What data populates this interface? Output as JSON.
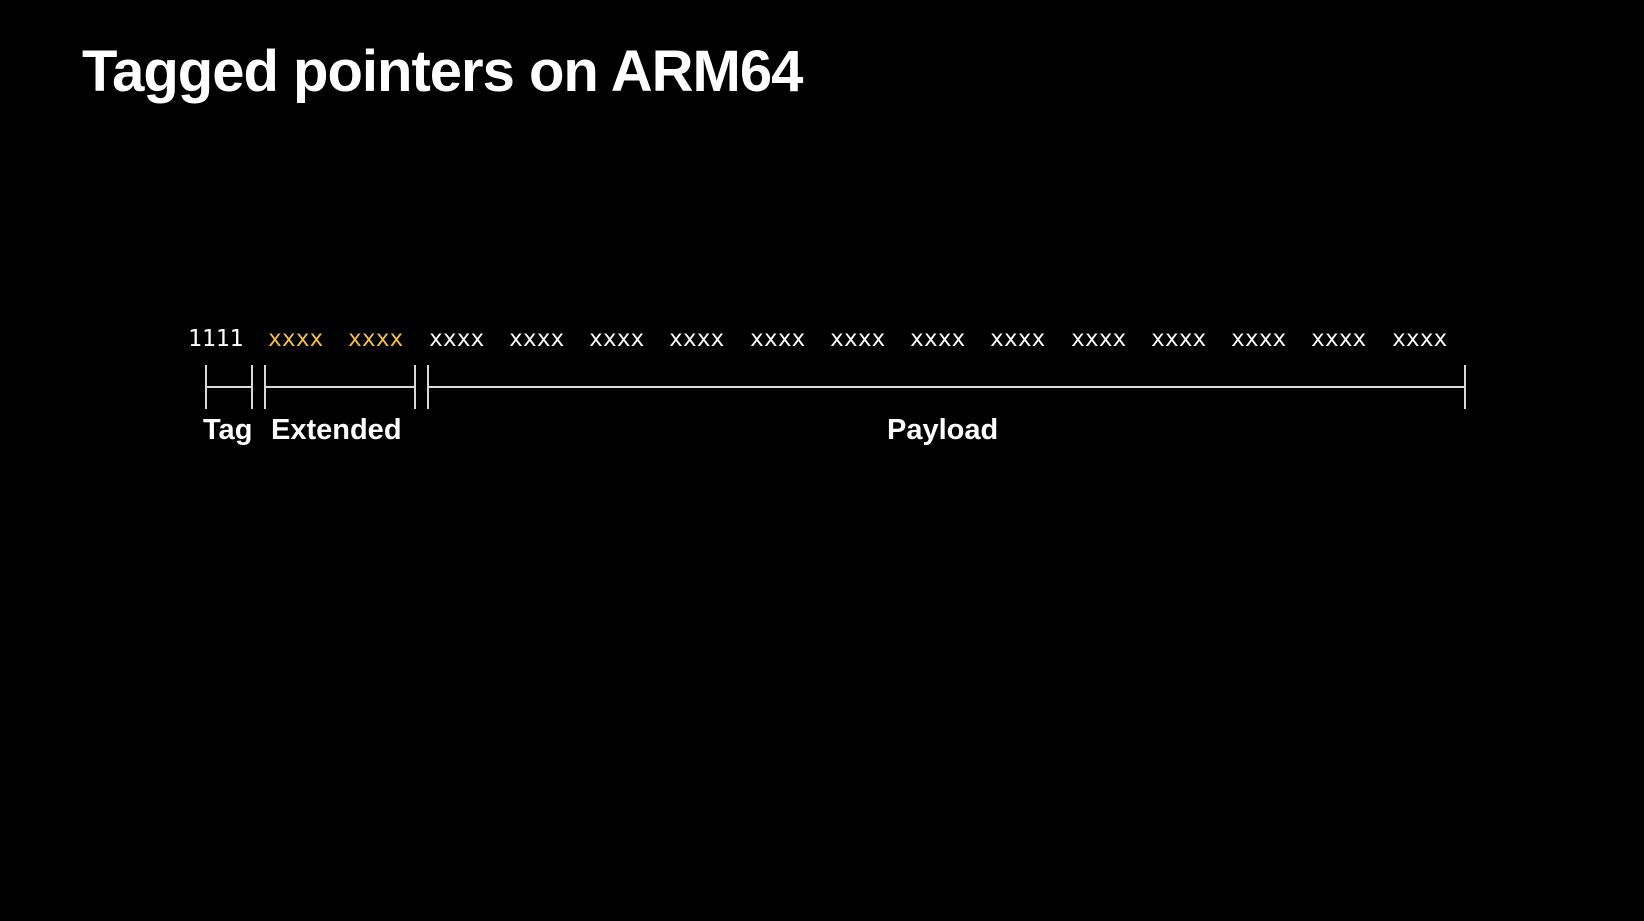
{
  "title": "Tagged pointers on ARM64",
  "colors": {
    "background": "#000000",
    "text": "#ffffff",
    "extended_highlight": "#f5c242",
    "bracket_line": "#d9d9d9"
  },
  "bits": {
    "tag": "1111",
    "extended": [
      "xxxx",
      "xxxx"
    ],
    "payload": [
      "xxxx",
      "xxxx",
      "xxxx",
      "xxxx",
      "xxxx",
      "xxxx",
      "xxxx",
      "xxxx",
      "xxxx",
      "xxxx",
      "xxxx",
      "xxxx",
      "xxxx"
    ]
  },
  "segments": {
    "tag": "Tag",
    "extended": "Extended",
    "payload": "Payload"
  }
}
